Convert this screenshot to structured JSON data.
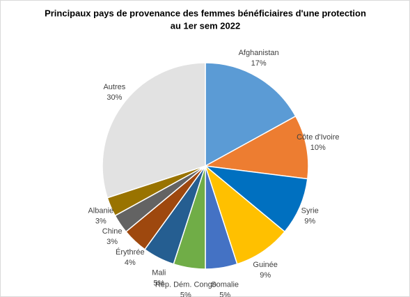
{
  "chart_data": {
    "type": "pie",
    "title": [
      "Principaux pays de provenance des femmes bénéficiaires d'une protection",
      "au 1er sem 2022"
    ],
    "categories": [
      "Afghanistan",
      "Côte d'Ivoire",
      "Syrie",
      "Guinée",
      "Somalie",
      "Rép. Dém. Congo",
      "Mali",
      "Érythrée",
      "Chine",
      "Albanie",
      "Autres"
    ],
    "values": [
      17,
      10,
      9,
      9,
      5,
      5,
      5,
      4,
      3,
      3,
      30
    ],
    "value_labels": [
      "17%",
      "10%",
      "9%",
      "9%",
      "5%",
      "5%",
      "5%",
      "4%",
      "3%",
      "3%",
      "30%"
    ],
    "colors": [
      "#5b9bd5",
      "#ed7d31",
      "#0070c0",
      "#ffc000",
      "#4472c4",
      "#70ad47",
      "#255e91",
      "#9e480e",
      "#636363",
      "#997300",
      "#e2e2e2"
    ]
  }
}
